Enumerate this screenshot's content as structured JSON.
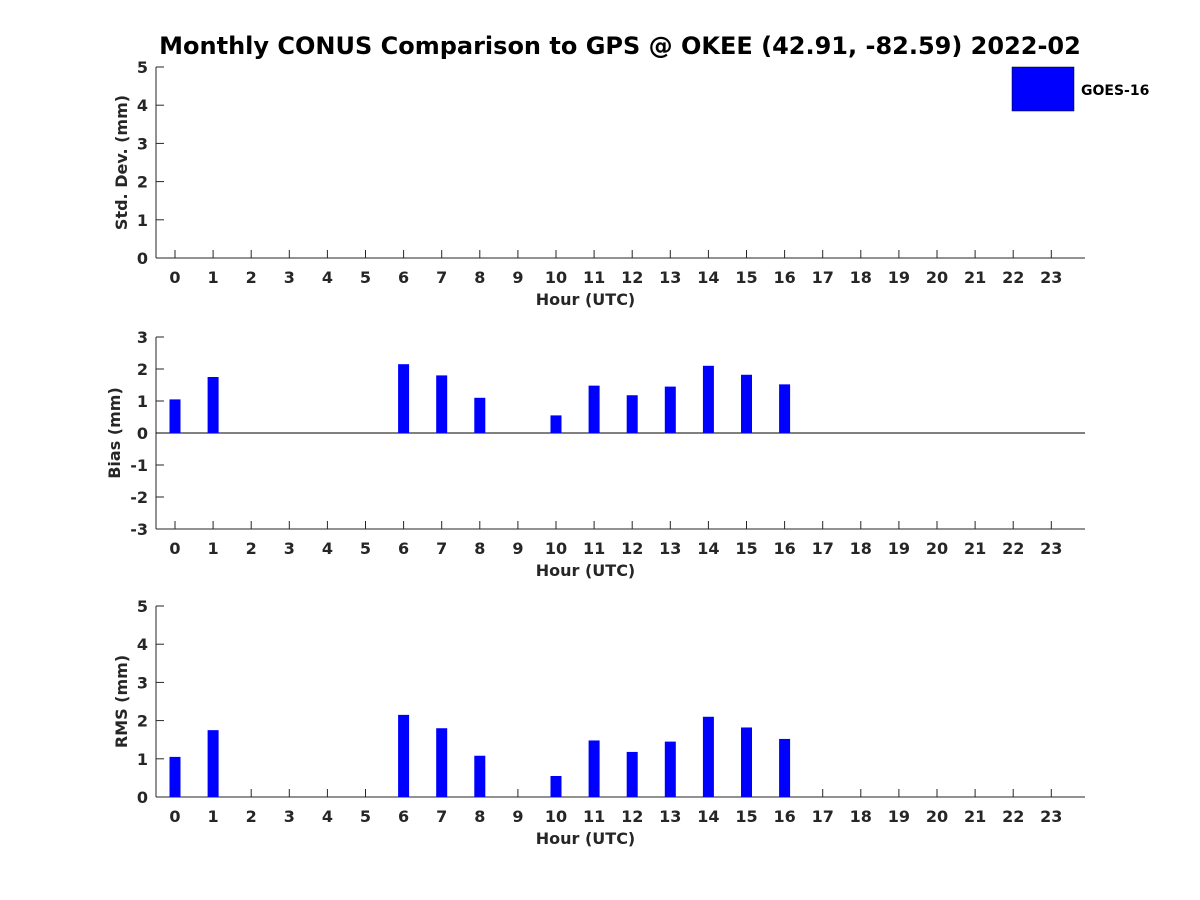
{
  "title": "Monthly CONUS Comparison to GPS @ OKEE (42.91, -82.59) 2022-02",
  "legend": {
    "label": "GOES-16",
    "color": "#0000ff",
    "position": "top-right"
  },
  "chart_data": [
    {
      "type": "bar",
      "x": [
        0,
        1,
        2,
        3,
        4,
        5,
        6,
        7,
        8,
        9,
        10,
        11,
        12,
        13,
        14,
        15,
        16,
        17,
        18,
        19,
        20,
        21,
        22,
        23
      ],
      "series": [
        {
          "name": "GOES-16",
          "values": [
            null,
            null,
            null,
            null,
            null,
            null,
            null,
            null,
            null,
            null,
            null,
            null,
            null,
            null,
            null,
            null,
            null,
            null,
            null,
            null,
            null,
            null,
            null,
            null
          ]
        }
      ],
      "xlabel": "Hour (UTC)",
      "ylabel": "Std. Dev. (mm)",
      "ylim": [
        0,
        5
      ],
      "yticks": [
        0,
        1,
        2,
        3,
        4,
        5
      ],
      "grid": false
    },
    {
      "type": "bar",
      "x": [
        0,
        1,
        2,
        3,
        4,
        5,
        6,
        7,
        8,
        9,
        10,
        11,
        12,
        13,
        14,
        15,
        16,
        17,
        18,
        19,
        20,
        21,
        22,
        23
      ],
      "series": [
        {
          "name": "GOES-16",
          "values": [
            1.05,
            1.75,
            null,
            null,
            null,
            null,
            2.15,
            1.8,
            1.1,
            null,
            0.55,
            1.48,
            1.18,
            1.45,
            2.1,
            1.82,
            1.52,
            null,
            null,
            null,
            null,
            null,
            null,
            null
          ]
        }
      ],
      "xlabel": "Hour (UTC)",
      "ylabel": "Bias (mm)",
      "ylim": [
        -3,
        3
      ],
      "yticks": [
        -3,
        -2,
        -1,
        0,
        1,
        2,
        3
      ],
      "zero_line": true,
      "grid": false
    },
    {
      "type": "bar",
      "x": [
        0,
        1,
        2,
        3,
        4,
        5,
        6,
        7,
        8,
        9,
        10,
        11,
        12,
        13,
        14,
        15,
        16,
        17,
        18,
        19,
        20,
        21,
        22,
        23
      ],
      "series": [
        {
          "name": "GOES-16",
          "values": [
            1.05,
            1.75,
            null,
            null,
            null,
            null,
            2.15,
            1.8,
            1.08,
            null,
            0.55,
            1.48,
            1.18,
            1.45,
            2.1,
            1.82,
            1.52,
            null,
            null,
            null,
            null,
            null,
            null,
            null
          ]
        }
      ],
      "xlabel": "Hour (UTC)",
      "ylabel": "RMS (mm)",
      "ylim": [
        0,
        5
      ],
      "yticks": [
        0,
        1,
        2,
        3,
        4,
        5
      ],
      "grid": false
    }
  ]
}
